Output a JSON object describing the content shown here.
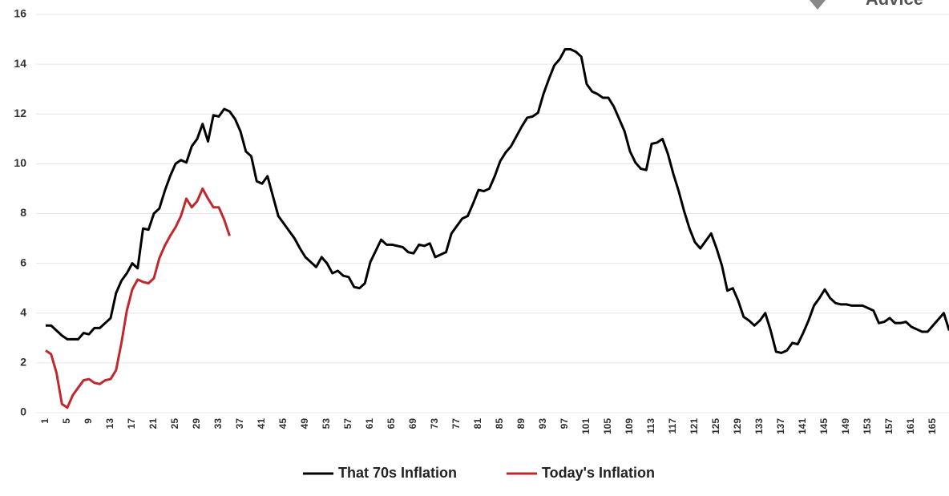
{
  "logo": "Advice",
  "chart_data": {
    "type": "line",
    "categories": [
      1,
      null,
      null,
      null,
      5,
      null,
      null,
      null,
      9,
      null,
      null,
      null,
      13,
      null,
      null,
      null,
      17,
      null,
      null,
      null,
      21,
      null,
      null,
      null,
      25,
      null,
      null,
      null,
      29,
      null,
      null,
      null,
      33,
      null,
      null,
      null,
      37,
      null,
      null,
      null,
      41,
      null,
      null,
      null,
      45,
      null,
      null,
      null,
      49,
      null,
      null,
      null,
      53,
      null,
      null,
      null,
      57,
      null,
      null,
      null,
      61,
      null,
      null,
      null,
      65,
      null,
      null,
      null,
      69,
      null,
      null,
      null,
      73,
      null,
      null,
      null,
      77,
      null,
      null,
      null,
      81,
      null,
      null,
      null,
      85,
      null,
      null,
      null,
      89,
      null,
      null,
      null,
      93,
      null,
      null,
      null,
      97,
      null,
      null,
      null,
      101,
      null,
      null,
      null,
      105,
      null,
      null,
      null,
      109,
      null,
      null,
      null,
      113,
      null,
      null,
      null,
      117,
      null,
      null,
      null,
      121,
      null,
      null,
      null,
      125,
      null,
      null,
      null,
      129,
      null,
      null,
      null,
      133,
      null,
      null,
      null,
      137,
      null,
      null,
      null,
      141,
      null,
      null,
      null,
      145,
      null,
      null,
      null,
      149,
      null,
      null,
      null,
      153,
      null,
      null,
      null,
      157,
      null,
      null,
      null,
      161,
      null,
      null,
      null,
      165,
      null,
      null,
      null
    ],
    "series": [
      {
        "name": "That 70s Inflation",
        "color": "#000000",
        "values": [
          3.5,
          3.5,
          3.3,
          3.1,
          2.95,
          2.95,
          2.95,
          3.2,
          3.15,
          3.4,
          3.4,
          3.6,
          3.8,
          4.8,
          5.3,
          5.6,
          6.0,
          5.8,
          7.4,
          7.35,
          8.0,
          8.2,
          8.9,
          9.5,
          10.0,
          10.15,
          10.05,
          10.7,
          11.0,
          11.6,
          10.9,
          11.95,
          11.9,
          12.2,
          12.1,
          11.8,
          11.3,
          10.5,
          10.3,
          9.3,
          9.2,
          9.5,
          8.7,
          7.9,
          7.6,
          7.3,
          7.0,
          6.6,
          6.25,
          6.05,
          5.85,
          6.25,
          6.0,
          5.6,
          5.7,
          5.5,
          5.45,
          5.05,
          5.0,
          5.2,
          6.05,
          6.5,
          6.95,
          6.75,
          6.75,
          6.7,
          6.65,
          6.45,
          6.4,
          6.75,
          6.7,
          6.8,
          6.25,
          6.35,
          6.45,
          7.2,
          7.5,
          7.8,
          7.9,
          8.4,
          8.95,
          8.9,
          9.0,
          9.5,
          10.1,
          10.45,
          10.7,
          11.1,
          11.5,
          11.85,
          11.9,
          12.05,
          12.8,
          13.4,
          13.95,
          14.2,
          14.6,
          14.6,
          14.5,
          14.3,
          13.2,
          12.9,
          12.8,
          12.65,
          12.65,
          12.3,
          11.8,
          11.3,
          10.5,
          10.05,
          9.8,
          9.75,
          10.8,
          10.85,
          11.0,
          10.4,
          9.6,
          8.9,
          8.1,
          7.4,
          6.85,
          6.6,
          6.9,
          7.2,
          6.6,
          5.9,
          4.9,
          5.0,
          4.5,
          3.85,
          3.7,
          3.5,
          3.7,
          4.0,
          3.3,
          2.45,
          2.4,
          2.5,
          2.8,
          2.75,
          3.2,
          3.7,
          4.3,
          4.6,
          4.95,
          4.6,
          4.4,
          4.35,
          4.35,
          4.3,
          4.3,
          4.3,
          4.2,
          4.1,
          3.6,
          3.65,
          3.8,
          3.6,
          3.6,
          3.65,
          3.45,
          3.35,
          3.25,
          3.25,
          3.5,
          3.75,
          4.0,
          3.3
        ]
      },
      {
        "name": "Today's Inflation",
        "color": "#c0282d",
        "values": [
          2.5,
          2.35,
          1.6,
          0.35,
          0.2,
          0.7,
          1.0,
          1.3,
          1.35,
          1.2,
          1.15,
          1.3,
          1.35,
          1.7,
          2.8,
          4.1,
          4.95,
          5.35,
          5.25,
          5.2,
          5.4,
          6.2,
          6.7,
          7.1,
          7.45,
          7.9,
          8.6,
          8.25,
          8.5,
          9.0,
          8.6,
          8.25,
          8.25,
          7.75,
          7.1,
          null,
          null,
          null,
          null,
          null,
          null,
          null,
          null,
          null,
          null,
          null,
          null,
          null,
          null,
          null,
          null,
          null,
          null,
          null,
          null,
          null,
          null,
          null,
          null,
          null,
          null,
          null,
          null,
          null,
          null,
          null,
          null,
          null,
          null,
          null,
          null,
          null,
          null,
          null,
          null,
          null,
          null,
          null,
          null,
          null,
          null,
          null,
          null,
          null,
          null,
          null,
          null,
          null,
          null,
          null,
          null,
          null,
          null,
          null,
          null,
          null,
          null,
          null,
          null,
          null,
          null,
          null,
          null,
          null,
          null,
          null,
          null,
          null,
          null,
          null,
          null,
          null,
          null,
          null,
          null,
          null,
          null,
          null,
          null,
          null,
          null,
          null,
          null,
          null,
          null,
          null,
          null,
          null,
          null,
          null,
          null,
          null,
          null,
          null,
          null,
          null,
          null,
          null,
          null,
          null,
          null,
          null,
          null,
          null,
          null,
          null,
          null,
          null,
          null,
          null,
          null,
          null,
          null,
          null,
          null,
          null,
          null,
          null,
          null,
          null,
          null,
          null,
          null,
          null,
          null,
          null,
          null,
          null
        ]
      }
    ],
    "ylim": [
      0,
      16
    ],
    "yticks": [
      0,
      2,
      4,
      6,
      8,
      10,
      12,
      14,
      16
    ],
    "grid": true,
    "legend": "bottom"
  }
}
